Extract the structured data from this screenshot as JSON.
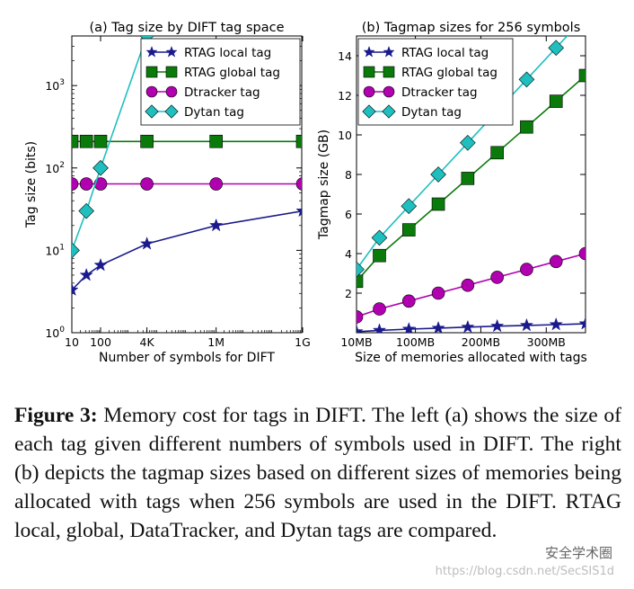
{
  "chart_data": [
    {
      "type": "line",
      "title": "(a) Tag size by DIFT tag space",
      "xlabel": "Number of symbols for DIFT",
      "ylabel": "Tag size (bits)",
      "xscale": "log",
      "yscale": "log",
      "xlim": [
        10,
        1000000000
      ],
      "ylim": [
        1,
        4000
      ],
      "x_ticks": [
        "10",
        "100",
        "4K",
        "1M",
        "1G"
      ],
      "x_tick_values": [
        10,
        100,
        4096,
        1048576,
        1073741824
      ],
      "y_ticks": [
        "10^0",
        "10^1",
        "10^2",
        "10^3"
      ],
      "legend_position": "top-right",
      "grid": false,
      "series": [
        {
          "name": "RTAG local tag",
          "color": "#1a1a8c",
          "marker": "star",
          "x": [
            10,
            32,
            100,
            4096,
            1048576,
            1073741824
          ],
          "y": [
            3.3,
            5,
            6.6,
            12,
            20,
            30
          ]
        },
        {
          "name": "RTAG global tag",
          "color": "#0a7a0a",
          "marker": "square",
          "x": [
            10,
            32,
            100,
            4096,
            1048576,
            1073741824
          ],
          "y": [
            210,
            210,
            210,
            210,
            210,
            210
          ]
        },
        {
          "name": "Dtracker tag",
          "color": "#b000b0",
          "marker": "circle",
          "x": [
            10,
            32,
            100,
            4096,
            1048576,
            1073741824
          ],
          "y": [
            64,
            64,
            64,
            64,
            64,
            64
          ]
        },
        {
          "name": "Dytan tag",
          "color": "#1fbfbf",
          "marker": "diamond",
          "x": [
            10,
            32,
            100,
            4096
          ],
          "y": [
            10,
            30,
            100,
            4096
          ]
        }
      ]
    },
    {
      "type": "line",
      "title": "(b) Tagmap sizes for 256 symbols",
      "xlabel": "Size of memories allocated with tags",
      "ylabel": "Tagmap size (GB)",
      "xlim": [
        10,
        360
      ],
      "ylim": [
        0,
        15
      ],
      "x_ticks": [
        "10MB",
        "100MB",
        "200MB",
        "300MB"
      ],
      "x_tick_values": [
        10,
        100,
        200,
        300
      ],
      "y_ticks": [
        "2",
        "4",
        "6",
        "8",
        "10",
        "12",
        "14"
      ],
      "legend_position": "top-left",
      "grid": false,
      "series": [
        {
          "name": "RTAG local tag",
          "color": "#1a1a8c",
          "marker": "star",
          "x": [
            10,
            45,
            90,
            135,
            180,
            225,
            270,
            315,
            360
          ],
          "y": [
            0.05,
            0.12,
            0.18,
            0.23,
            0.28,
            0.33,
            0.37,
            0.41,
            0.45
          ]
        },
        {
          "name": "RTAG global tag",
          "color": "#0a7a0a",
          "marker": "square",
          "x": [
            10,
            45,
            90,
            135,
            180,
            225,
            270,
            315,
            360
          ],
          "y": [
            2.6,
            3.9,
            5.2,
            6.5,
            7.8,
            9.1,
            10.4,
            11.7,
            13.0
          ]
        },
        {
          "name": "Dtracker tag",
          "color": "#b000b0",
          "marker": "circle",
          "x": [
            10,
            45,
            90,
            135,
            180,
            225,
            270,
            315,
            360
          ],
          "y": [
            0.8,
            1.2,
            1.6,
            2.0,
            2.4,
            2.8,
            3.2,
            3.6,
            4.0
          ]
        },
        {
          "name": "Dytan tag",
          "color": "#1fbfbf",
          "marker": "diamond",
          "x": [
            10,
            45,
            90,
            135,
            180,
            225,
            270,
            315,
            360
          ],
          "y": [
            3.2,
            4.8,
            6.4,
            8.0,
            9.6,
            11.2,
            12.8,
            14.4,
            16.0
          ]
        }
      ]
    }
  ],
  "caption": {
    "label": "Figure 3:",
    "text_1": " Memory cost for tags in DIFT. The left (a) shows the size of each tag given different numbers of symbols used in DIFT. The right (b) depicts the tagmap sizes based on different sizes of memories being allocated with tags when 256 symbols are used in the DIFT. R",
    "smallcaps": "TAG",
    "text_2": " local, global, DataTracker, and Dytan tags are compared."
  },
  "watermark": {
    "brand": "安全学术圈",
    "url": "https://blog.csdn.net/SecSIS1d"
  }
}
